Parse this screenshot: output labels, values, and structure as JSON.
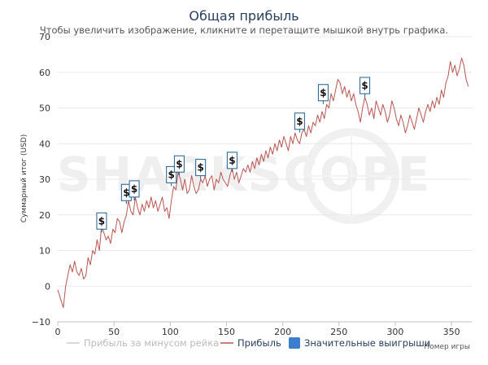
{
  "chart_data": {
    "type": "line",
    "title": "Общая прибыль",
    "subtitle": "Чтобы увеличить изображение, кликните и перетащите мышкой внутрь графика.",
    "xlabel": "Номер игры",
    "ylabel": "Суммарный итог (USD)",
    "xlim": [
      0,
      368
    ],
    "ylim": [
      -10,
      70
    ],
    "x_ticks": [
      0,
      50,
      100,
      150,
      200,
      250,
      300,
      350
    ],
    "y_ticks": [
      -10,
      0,
      10,
      20,
      30,
      40,
      50,
      60,
      70
    ],
    "grid": true,
    "legend_position": "bottom",
    "watermark": "SHARKSCOPE",
    "colors": {
      "profit_line": "#b85450",
      "rake_line": "#cccccc",
      "marker_border": "#1f5f8f",
      "marker_legend": "#3b7fcc",
      "grid": "#e8e8e8",
      "title": "#27405f"
    },
    "series": [
      {
        "name": "Прибыль",
        "key": "profit",
        "points": [
          [
            0,
            -1
          ],
          [
            3,
            -4
          ],
          [
            5,
            -6
          ],
          [
            7,
            0
          ],
          [
            9,
            3
          ],
          [
            11,
            6
          ],
          [
            13,
            4
          ],
          [
            15,
            7
          ],
          [
            17,
            4
          ],
          [
            19,
            3
          ],
          [
            21,
            5
          ],
          [
            23,
            2
          ],
          [
            25,
            3
          ],
          [
            27,
            8
          ],
          [
            29,
            6
          ],
          [
            31,
            10
          ],
          [
            33,
            9
          ],
          [
            35,
            13
          ],
          [
            37,
            10
          ],
          [
            39,
            17
          ],
          [
            41,
            15
          ],
          [
            43,
            13
          ],
          [
            45,
            14
          ],
          [
            47,
            12
          ],
          [
            49,
            16
          ],
          [
            51,
            15
          ],
          [
            53,
            19
          ],
          [
            55,
            18
          ],
          [
            57,
            15
          ],
          [
            59,
            18
          ],
          [
            61,
            20
          ],
          [
            63,
            24
          ],
          [
            65,
            21
          ],
          [
            67,
            20
          ],
          [
            69,
            25
          ],
          [
            71,
            22
          ],
          [
            73,
            20
          ],
          [
            75,
            23
          ],
          [
            77,
            21
          ],
          [
            79,
            24
          ],
          [
            81,
            22
          ],
          [
            83,
            25
          ],
          [
            85,
            22
          ],
          [
            87,
            24
          ],
          [
            89,
            21
          ],
          [
            91,
            23
          ],
          [
            93,
            25
          ],
          [
            95,
            21
          ],
          [
            97,
            22
          ],
          [
            99,
            19
          ],
          [
            101,
            24
          ],
          [
            103,
            28
          ],
          [
            105,
            27
          ],
          [
            107,
            32
          ],
          [
            109,
            30
          ],
          [
            111,
            27
          ],
          [
            113,
            30
          ],
          [
            115,
            26
          ],
          [
            117,
            27
          ],
          [
            119,
            31
          ],
          [
            121,
            28
          ],
          [
            123,
            26
          ],
          [
            125,
            27
          ],
          [
            127,
            30
          ],
          [
            129,
            29
          ],
          [
            131,
            31
          ],
          [
            133,
            28
          ],
          [
            135,
            30
          ],
          [
            137,
            31
          ],
          [
            139,
            27
          ],
          [
            141,
            30
          ],
          [
            143,
            29
          ],
          [
            145,
            32
          ],
          [
            147,
            30
          ],
          [
            149,
            29
          ],
          [
            151,
            28
          ],
          [
            153,
            31
          ],
          [
            155,
            33
          ],
          [
            157,
            30
          ],
          [
            159,
            32
          ],
          [
            161,
            29
          ],
          [
            163,
            31
          ],
          [
            165,
            33
          ],
          [
            167,
            32
          ],
          [
            169,
            34
          ],
          [
            171,
            32
          ],
          [
            173,
            35
          ],
          [
            175,
            33
          ],
          [
            177,
            36
          ],
          [
            179,
            34
          ],
          [
            181,
            37
          ],
          [
            183,
            35
          ],
          [
            185,
            38
          ],
          [
            187,
            36
          ],
          [
            189,
            39
          ],
          [
            191,
            37
          ],
          [
            193,
            40
          ],
          [
            195,
            38
          ],
          [
            197,
            41
          ],
          [
            199,
            39
          ],
          [
            201,
            42
          ],
          [
            203,
            40
          ],
          [
            205,
            38
          ],
          [
            207,
            42
          ],
          [
            209,
            40
          ],
          [
            211,
            43
          ],
          [
            213,
            41
          ],
          [
            215,
            40
          ],
          [
            217,
            43
          ],
          [
            219,
            44
          ],
          [
            221,
            42
          ],
          [
            223,
            45
          ],
          [
            225,
            43
          ],
          [
            227,
            46
          ],
          [
            229,
            45
          ],
          [
            231,
            48
          ],
          [
            233,
            46
          ],
          [
            235,
            49
          ],
          [
            237,
            47
          ],
          [
            239,
            51
          ],
          [
            241,
            50
          ],
          [
            243,
            54
          ],
          [
            245,
            52
          ],
          [
            247,
            55
          ],
          [
            249,
            58
          ],
          [
            251,
            57
          ],
          [
            253,
            54
          ],
          [
            255,
            56
          ],
          [
            257,
            53
          ],
          [
            259,
            55
          ],
          [
            261,
            52
          ],
          [
            263,
            54
          ],
          [
            265,
            51
          ],
          [
            267,
            49
          ],
          [
            269,
            46
          ],
          [
            271,
            50
          ],
          [
            273,
            53
          ],
          [
            275,
            51
          ],
          [
            277,
            48
          ],
          [
            279,
            50
          ],
          [
            281,
            47
          ],
          [
            283,
            52
          ],
          [
            285,
            50
          ],
          [
            287,
            48
          ],
          [
            289,
            51
          ],
          [
            291,
            49
          ],
          [
            293,
            46
          ],
          [
            295,
            48
          ],
          [
            297,
            52
          ],
          [
            299,
            50
          ],
          [
            301,
            47
          ],
          [
            303,
            45
          ],
          [
            305,
            48
          ],
          [
            307,
            46
          ],
          [
            309,
            43
          ],
          [
            311,
            45
          ],
          [
            313,
            48
          ],
          [
            315,
            46
          ],
          [
            317,
            44
          ],
          [
            319,
            47
          ],
          [
            321,
            50
          ],
          [
            323,
            48
          ],
          [
            325,
            46
          ],
          [
            327,
            49
          ],
          [
            329,
            51
          ],
          [
            331,
            49
          ],
          [
            333,
            52
          ],
          [
            335,
            50
          ],
          [
            337,
            53
          ],
          [
            339,
            51
          ],
          [
            341,
            55
          ],
          [
            343,
            53
          ],
          [
            345,
            57
          ],
          [
            347,
            59
          ],
          [
            349,
            63
          ],
          [
            351,
            60
          ],
          [
            353,
            62
          ],
          [
            355,
            59
          ],
          [
            357,
            61
          ],
          [
            359,
            64
          ],
          [
            361,
            62
          ],
          [
            363,
            58
          ],
          [
            365,
            56
          ]
        ]
      },
      {
        "name": "Прибыль за минусом рейка",
        "key": "rake",
        "points": []
      }
    ],
    "markers": {
      "name": "Значительные выигрыши",
      "label": "$",
      "points": [
        [
          39,
          16
        ],
        [
          61,
          24
        ],
        [
          68,
          25
        ],
        [
          101,
          29
        ],
        [
          108,
          32
        ],
        [
          127,
          31
        ],
        [
          155,
          33
        ],
        [
          215,
          44
        ],
        [
          236,
          52
        ],
        [
          273,
          54
        ]
      ]
    },
    "legend": [
      {
        "name": "Прибыль за минусом рейка",
        "type": "line",
        "color": "#cccccc",
        "text_color": "#bbbbbb"
      },
      {
        "name": "Прибыль",
        "type": "line",
        "color": "#b85450",
        "text_color": "#27405f"
      },
      {
        "name": "Значительные выигрыши",
        "type": "box",
        "color": "#3b7fcc",
        "text_color": "#27405f"
      }
    ]
  }
}
